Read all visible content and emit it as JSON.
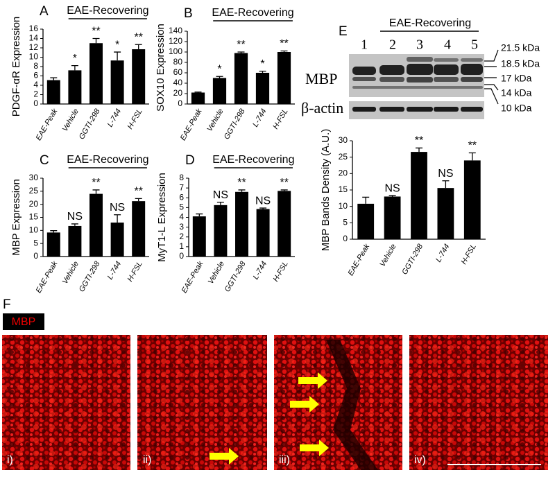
{
  "chart_data": [
    {
      "type": "bar",
      "label": "A",
      "group_label": "EAE-Recovering",
      "y_label": "PDGF-αR Expression",
      "categories": [
        "EAE-Peak",
        "Vehicle",
        "GGTI-298",
        "L-744",
        "H-FSL"
      ],
      "values": [
        5.1,
        7.2,
        13,
        9.3,
        11.7
      ],
      "errors": [
        0.5,
        1.0,
        1.0,
        1.8,
        1.0
      ],
      "annotations": [
        null,
        "*",
        "**",
        "*",
        "**"
      ],
      "color": "#000000",
      "ylim": [
        0,
        16
      ],
      "yticks": [
        0,
        2,
        4,
        6,
        8,
        10,
        12,
        14,
        16
      ]
    },
    {
      "type": "bar",
      "label": "B",
      "group_label": "EAE-Recovering",
      "y_label": "SOX10 Expression",
      "categories": [
        "EAE-Peak",
        "Vehicle",
        "GGTI-298",
        "L-744",
        "H-FSL"
      ],
      "values": [
        22,
        50,
        98,
        60,
        100
      ],
      "errors": [
        1,
        3,
        2,
        3,
        2
      ],
      "annotations": [
        null,
        "*",
        "**",
        "*",
        "**"
      ],
      "color": "#000000",
      "ylim": [
        0,
        140
      ],
      "yticks": [
        0,
        20,
        40,
        60,
        80,
        100,
        120,
        140
      ]
    },
    {
      "type": "bar",
      "label": "C",
      "group_label": "EAE-Recovering",
      "y_label": "MBP Expression",
      "categories": [
        "EAE-Peak",
        "Vehicle",
        "GGTI-298",
        "L-744",
        "H-FSL"
      ],
      "values": [
        9.2,
        11.7,
        24,
        13,
        21.2
      ],
      "errors": [
        0.7,
        0.8,
        1.5,
        3,
        1
      ],
      "annotations": [
        null,
        "NS",
        "**",
        "NS",
        "**"
      ],
      "color": "#000000",
      "ylim": [
        0,
        30
      ],
      "yticks": [
        0,
        5,
        10,
        15,
        20,
        25,
        30
      ]
    },
    {
      "type": "bar",
      "label": "D",
      "group_label": "EAE-Recovering",
      "y_label": "MyT1-L Expression",
      "categories": [
        "EAE-Peak",
        "Vehicle",
        "GGTI-298",
        "L-744",
        "H-FSL"
      ],
      "values": [
        4.1,
        5.25,
        6.6,
        4.85,
        6.7
      ],
      "errors": [
        0.25,
        0.3,
        0.2,
        0.1,
        0.1
      ],
      "annotations": [
        null,
        "NS",
        "**",
        "NS",
        "**"
      ],
      "color": "#000000",
      "ylim": [
        0,
        8
      ],
      "yticks": [
        0,
        1,
        2,
        3,
        4,
        5,
        6,
        7,
        8
      ]
    },
    {
      "type": "bar",
      "y_label": "MBP Bands Density (A.U.)",
      "categories": [
        "EAE-Peak",
        "Vehicle",
        "GGTI-298",
        "L-744",
        "H-FSL"
      ],
      "values": [
        10.8,
        13,
        26.6,
        15.6,
        24
      ],
      "errors": [
        2,
        0.3,
        1.2,
        2.2,
        2.3
      ],
      "annotations": [
        null,
        "NS",
        "**",
        "NS",
        "**"
      ],
      "color": "#000000",
      "ylim": [
        0,
        30
      ],
      "yticks": [
        0,
        5,
        10,
        15,
        20,
        25,
        30
      ]
    }
  ],
  "blot": {
    "label": "E",
    "group_label": "EAE-Recovering",
    "lanes": [
      "1",
      "2",
      "3",
      "4",
      "5"
    ],
    "rows": [
      "MBP",
      "β-actin"
    ],
    "markers": [
      "21.5 kDa",
      "18.5 kDa",
      "17 kDa",
      "14 kDa",
      "10 kDa"
    ]
  },
  "micrographs": {
    "label": "F",
    "stain": "MBP",
    "panels": [
      "i)",
      "ii)",
      "iii)",
      "iv)"
    ]
  }
}
